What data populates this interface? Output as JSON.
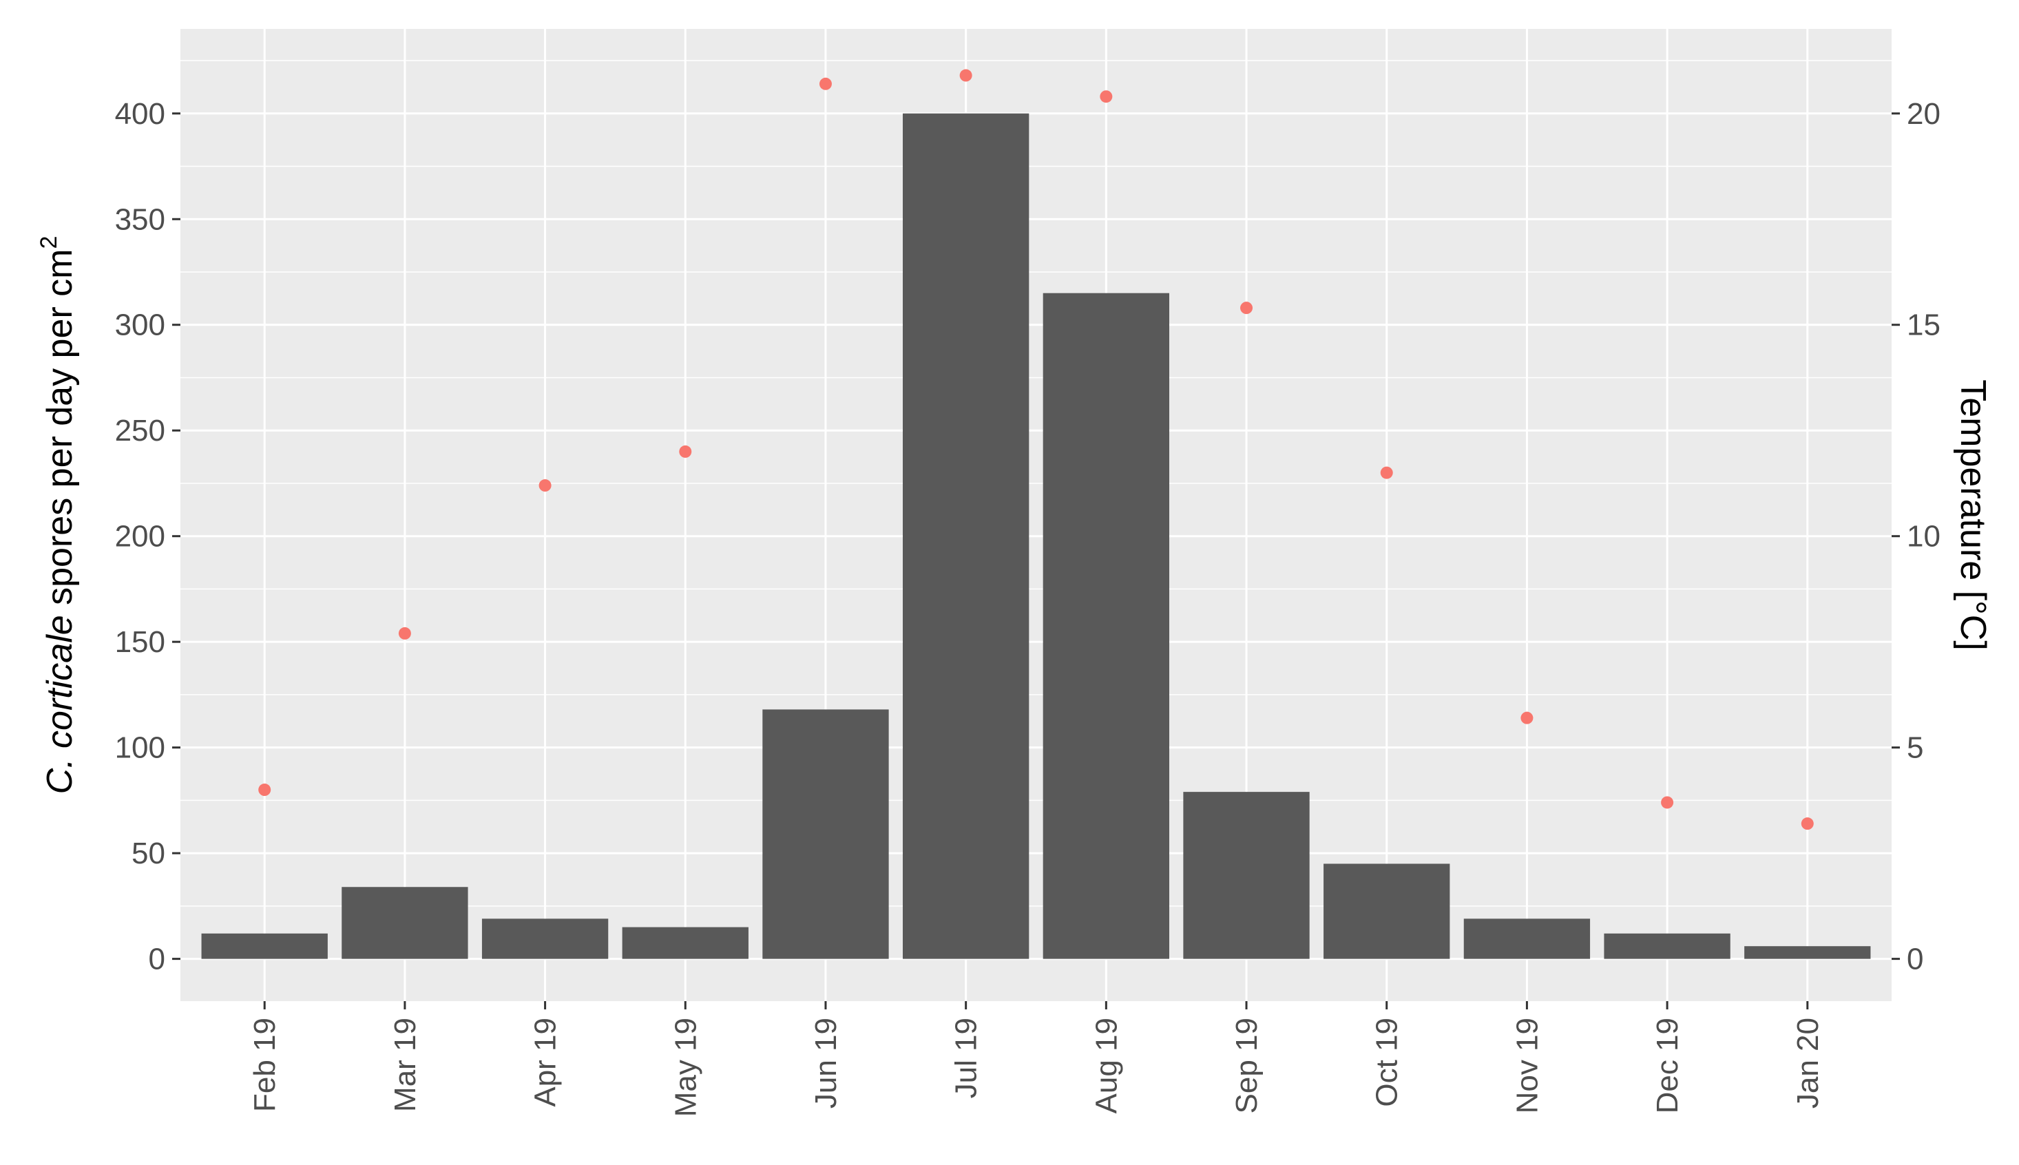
{
  "chart_data": {
    "type": "bar",
    "categories": [
      "Feb 19",
      "Mar 19",
      "Apr 19",
      "May 19",
      "Jun 19",
      "Jul 19",
      "Aug 19",
      "Sep 19",
      "Oct 19",
      "Nov 19",
      "Dec 19",
      "Jan 20"
    ],
    "series": [
      {
        "values": [
          12,
          34,
          19,
          15,
          118,
          400,
          315,
          79,
          45,
          19,
          12,
          6
        ]
      },
      {
        "type": "scatter",
        "axis": "right",
        "values": [
          4.0,
          7.7,
          11.2,
          12.0,
          20.7,
          20.9,
          20.4,
          15.4,
          11.5,
          5.7,
          3.7,
          3.2
        ]
      }
    ],
    "ylabel_parts": {
      "italic": "C. corticale",
      "main": " spores per day per cm",
      "sup": "2"
    },
    "y2label": "Temperature [°C]",
    "ylim": [
      -20,
      440
    ],
    "y2lim": [
      -1,
      22
    ],
    "yticks": [
      0,
      50,
      100,
      150,
      200,
      250,
      300,
      350,
      400
    ],
    "y2ticks": [
      0,
      5,
      10,
      15,
      20
    ],
    "grid": true,
    "colors": {
      "bar": "#595959",
      "point": "#f8766d",
      "panel": "#ebebeb",
      "grid": "#ffffff"
    }
  }
}
